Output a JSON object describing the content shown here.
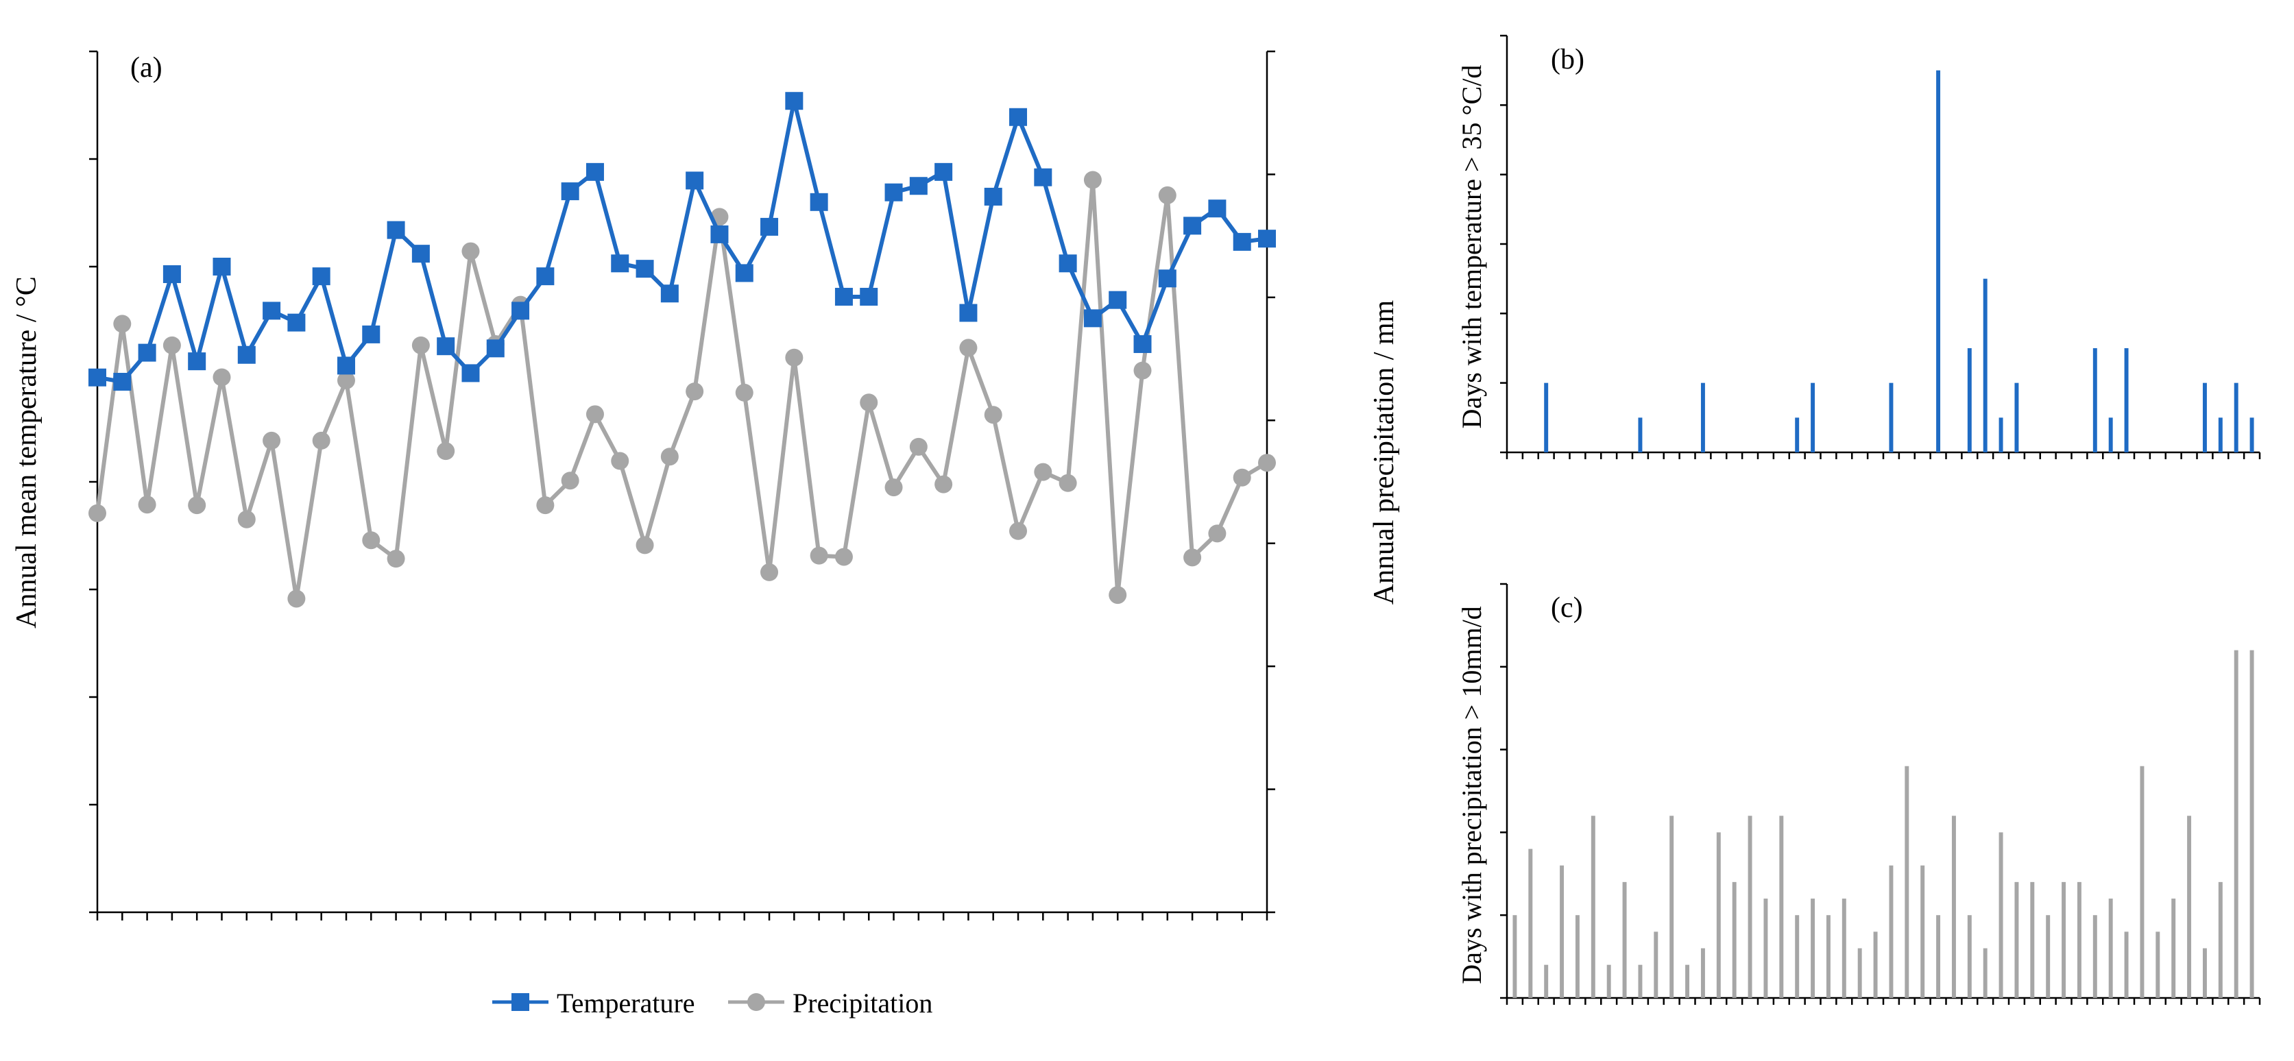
{
  "chart_data": [
    {
      "panel": "(a)",
      "type": "line",
      "title": "",
      "x": [
        1970,
        1971,
        1972,
        1973,
        1974,
        1975,
        1976,
        1977,
        1978,
        1979,
        1980,
        1981,
        1982,
        1983,
        1984,
        1985,
        1986,
        1987,
        1988,
        1989,
        1990,
        1991,
        1992,
        1993,
        1994,
        1995,
        1996,
        1997,
        1998,
        1999,
        2000,
        2001,
        2002,
        2003,
        2004,
        2005,
        2006,
        2007,
        2008,
        2009,
        2010,
        2011,
        2012,
        2013,
        2014,
        2015,
        2016,
        2017
      ],
      "xticks": [
        "1970",
        "1975",
        "1980",
        "1985",
        "1990",
        "1995",
        "2000",
        "2005",
        "2010",
        "2015"
      ],
      "xlim": [
        1970,
        2017
      ],
      "ylabel": "Annual mean temperature / °C",
      "ylim": [
        0,
        8
      ],
      "yticks": [
        "0",
        "1",
        "2",
        "3",
        "4",
        "5",
        "6",
        "7",
        "8"
      ],
      "y2label": "Annual precipitation / mm",
      "y2lim": [
        0,
        1400
      ],
      "y2ticks": [
        "0",
        "200",
        "400",
        "600",
        "800",
        "1000",
        "1200",
        "1400"
      ],
      "series": [
        {
          "name": "Temperature",
          "axis": "left",
          "color": "#1f6bc4",
          "marker": "square",
          "values": [
            4.97,
            4.93,
            5.2,
            5.93,
            5.12,
            6.0,
            5.18,
            5.59,
            5.48,
            5.91,
            5.08,
            5.37,
            6.34,
            6.12,
            5.26,
            5.01,
            5.24,
            5.59,
            5.91,
            6.7,
            6.88,
            6.03,
            5.98,
            5.75,
            6.8,
            6.3,
            5.94,
            6.37,
            7.54,
            6.6,
            5.72,
            5.72,
            6.69,
            6.75,
            6.88,
            5.57,
            6.65,
            7.39,
            6.83,
            6.03,
            5.52,
            5.69,
            5.28,
            5.89,
            6.38,
            6.54,
            6.23,
            6.26
          ]
        },
        {
          "name": "Precipitation",
          "axis": "right",
          "color": "#a6a6a6",
          "marker": "circle",
          "values": [
            649,
            957,
            663,
            922,
            662,
            870,
            639,
            767,
            510,
            767,
            865,
            605,
            575,
            922,
            750,
            1075,
            924,
            988,
            662,
            702,
            810,
            734,
            597,
            741,
            847,
            1131,
            845,
            553,
            902,
            580,
            578,
            829,
            691,
            757,
            696,
            918,
            809,
            620,
            716,
            698,
            1191,
            516,
            881,
            1166,
            577,
            616,
            707,
            731
          ]
        }
      ],
      "legend": [
        "Temperature",
        "Precipitation"
      ],
      "legend_position": "bottom-center"
    },
    {
      "panel": "(b)",
      "type": "bar",
      "title": "",
      "xticks": [
        "1970",
        "1975",
        "1980",
        "1985",
        "1990",
        "1995",
        "2000",
        "2005",
        "2010",
        "2015"
      ],
      "xlim": [
        1970,
        2017
      ],
      "ylabel": "Days with temperature > 35 °C/d",
      "ylim": [
        0,
        12
      ],
      "yticks": [
        "0",
        "2",
        "4",
        "6",
        "8",
        "10",
        "12"
      ],
      "color": "#1f6bc4",
      "x": [
        1972,
        1978,
        1982,
        1988,
        1989,
        1994,
        1997,
        1999,
        2000,
        2001,
        2002,
        2007,
        2008,
        2009,
        2014,
        2015,
        2016,
        2017
      ],
      "values": [
        2,
        1,
        2,
        1,
        2,
        2,
        11,
        3,
        5,
        1,
        2,
        3,
        1,
        3,
        2,
        1,
        2,
        1
      ]
    },
    {
      "panel": "(c)",
      "type": "bar",
      "title": "",
      "xticks": [
        "1970",
        "1975",
        "1980",
        "1985",
        "1990",
        "1995",
        "2000",
        "2005",
        "2010",
        "2015"
      ],
      "xlim": [
        1970,
        2017
      ],
      "ylabel": "Days with precipitation > 10mm/d",
      "ylim": [
        0,
        25
      ],
      "yticks": [
        "0",
        "5",
        "10",
        "15",
        "20",
        "25"
      ],
      "color": "#a6a6a6",
      "x": [
        1970,
        1971,
        1972,
        1973,
        1974,
        1975,
        1976,
        1977,
        1978,
        1979,
        1980,
        1981,
        1982,
        1983,
        1984,
        1985,
        1986,
        1987,
        1988,
        1989,
        1990,
        1991,
        1992,
        1993,
        1994,
        1995,
        1996,
        1997,
        1998,
        1999,
        2000,
        2001,
        2002,
        2003,
        2004,
        2005,
        2006,
        2007,
        2008,
        2009,
        2010,
        2011,
        2012,
        2013,
        2014,
        2015,
        2016,
        2017
      ],
      "values": [
        5,
        9,
        2,
        8,
        5,
        11,
        2,
        7,
        2,
        4,
        11,
        2,
        3,
        10,
        7,
        11,
        6,
        11,
        5,
        6,
        5,
        6,
        3,
        4,
        8,
        14,
        8,
        5,
        11,
        5,
        3,
        10,
        7,
        7,
        5,
        7,
        7,
        5,
        6,
        4,
        14,
        4,
        6,
        11,
        3,
        7,
        21,
        21
      ]
    }
  ]
}
